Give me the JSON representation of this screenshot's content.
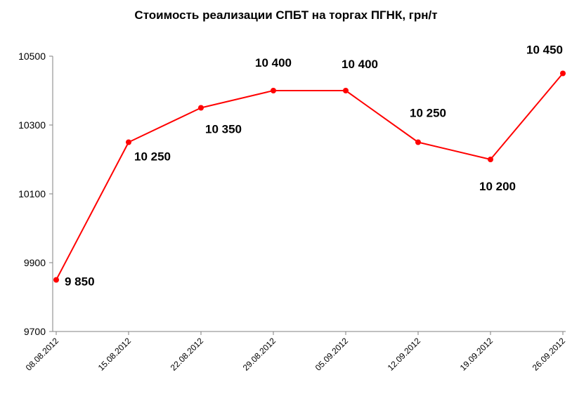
{
  "chart_data": {
    "type": "line",
    "title": "Стоимость реализации СПБТ на торгах ПГНК, грн/т",
    "categories": [
      "08.08.2012",
      "15.08.2012",
      "22.08.2012",
      "29.08.2012",
      "05.09.2012",
      "12.09.2012",
      "19.09.2012",
      "26.09.2012"
    ],
    "series": [
      {
        "values": [
          9850,
          10250,
          10350,
          10400,
          10400,
          10250,
          10200,
          10450
        ],
        "data_labels": [
          "9 850",
          "10 250",
          "10 350",
          "10 400",
          "10 400",
          "10 250",
          "10 200",
          "10 450"
        ]
      }
    ],
    "yticks": [
      "9700",
      "9900",
      "10100",
      "10300",
      "10500"
    ],
    "ylim": [
      9700,
      10500
    ],
    "grid": false,
    "legend": "none",
    "xlabel": "",
    "ylabel": "",
    "colors": {
      "line": "#ff0000",
      "axis": "#808080"
    }
  }
}
